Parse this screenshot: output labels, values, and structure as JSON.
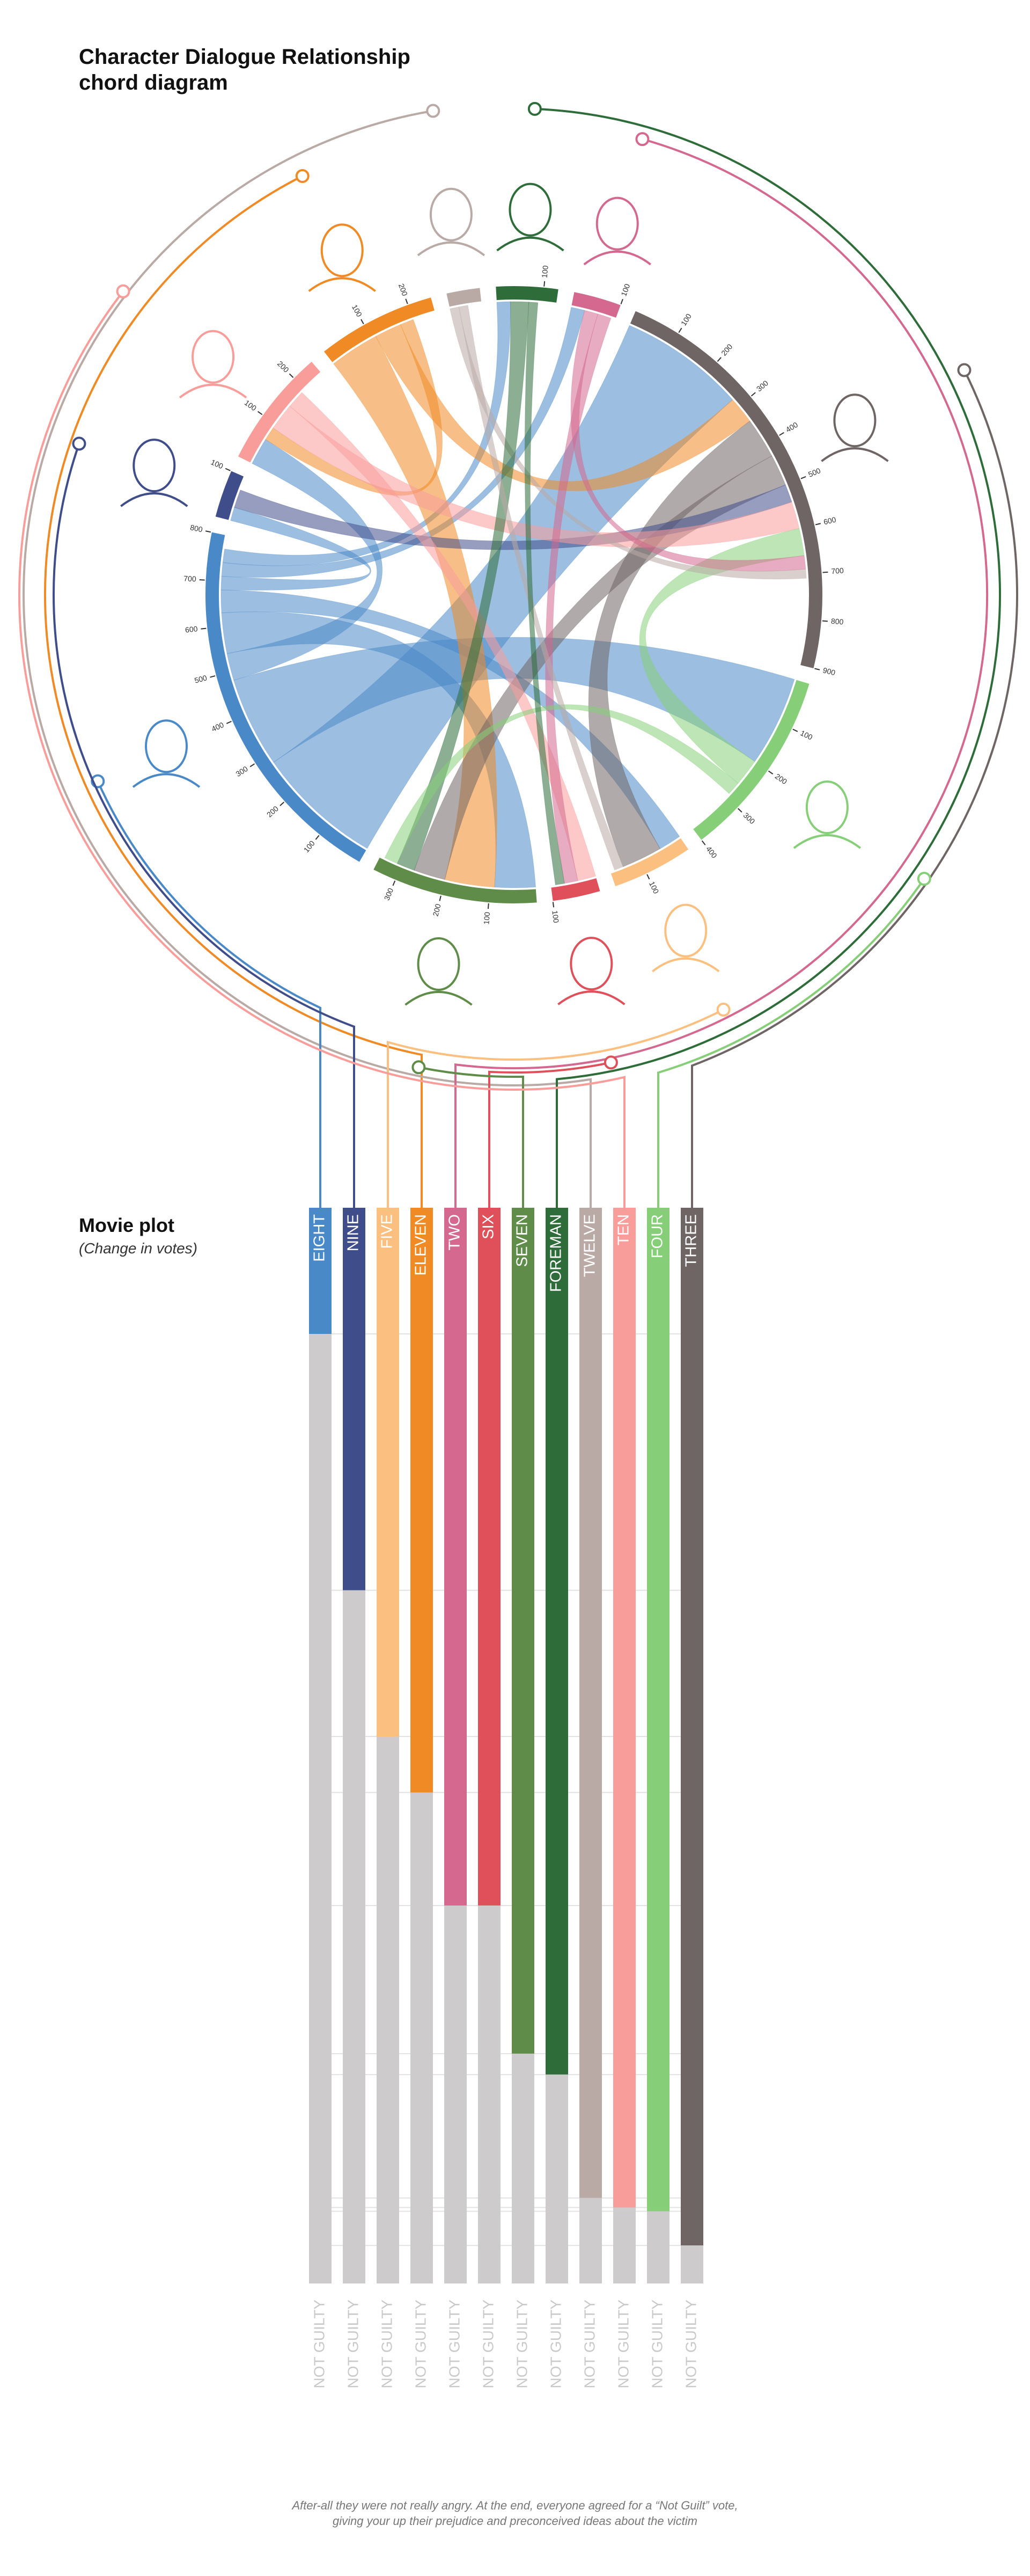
{
  "chart_data": [
    {
      "type": "chord",
      "title": "Character Dialogue Relationship chord diagram",
      "groups": [
        {
          "character": "ELEVEN",
          "value": 250
        },
        {
          "character": "TWELVE",
          "value": 70
        },
        {
          "character": "FOREMAN",
          "value": 130
        },
        {
          "character": "TWO",
          "value": 100
        },
        {
          "character": "THREE",
          "value": 900
        },
        {
          "character": "FOUR",
          "value": 400
        },
        {
          "character": "FIVE",
          "value": 170
        },
        {
          "character": "SIX",
          "value": 100
        },
        {
          "character": "SEVEN",
          "value": 350
        },
        {
          "character": "EIGHT",
          "value": 800
        },
        {
          "character": "NINE",
          "value": 100
        },
        {
          "character": "TEN",
          "value": 250
        }
      ],
      "ticks": [
        100,
        200,
        300,
        400,
        500,
        600,
        700,
        800,
        900
      ],
      "chords": [
        {
          "from": "EIGHT",
          "to": "THREE",
          "value": 280
        },
        {
          "from": "EIGHT",
          "to": "FOUR",
          "value": 200
        },
        {
          "from": "EIGHT",
          "to": "TEN",
          "value": 60
        },
        {
          "from": "EIGHT",
          "to": "SEVEN",
          "value": 90
        },
        {
          "from": "EIGHT",
          "to": "FIVE",
          "value": 50
        },
        {
          "from": "EIGHT",
          "to": "NINE",
          "value": 30
        },
        {
          "from": "EIGHT",
          "to": "TWO",
          "value": 30
        },
        {
          "from": "EIGHT",
          "to": "FOREMAN",
          "value": 30
        },
        {
          "from": "ELEVEN",
          "to": "SEVEN",
          "value": 110
        },
        {
          "from": "ELEVEN",
          "to": "THREE",
          "value": 60
        },
        {
          "from": "ELEVEN",
          "to": "TEN",
          "value": 30
        },
        {
          "from": "THREE",
          "to": "FIVE",
          "value": 90
        },
        {
          "from": "THREE",
          "to": "SEVEN",
          "value": 70
        },
        {
          "from": "NINE",
          "to": "THREE",
          "value": 40
        },
        {
          "from": "TEN",
          "to": "THREE",
          "value": 60
        },
        {
          "from": "FOUR",
          "to": "THREE",
          "value": 60
        },
        {
          "from": "TWO",
          "to": "THREE",
          "value": 30
        },
        {
          "from": "TWELVE",
          "to": "THREE",
          "value": 20
        },
        {
          "from": "TEN",
          "to": "SIX",
          "value": 40
        },
        {
          "from": "TWO",
          "to": "SIX",
          "value": 30
        },
        {
          "from": "FOREMAN",
          "to": "SEVEN",
          "value": 40
        },
        {
          "from": "FOUR",
          "to": "SEVEN",
          "value": 30
        },
        {
          "from": "TWELVE",
          "to": "FIVE",
          "value": 20
        },
        {
          "from": "FOREMAN",
          "to": "SIX",
          "value": 20
        }
      ]
    },
    {
      "type": "timeline",
      "title": "Movie plot",
      "subtitle": "(Change in votes)",
      "categories": [
        "EIGHT",
        "NINE",
        "FIVE",
        "ELEVEN",
        "TWO",
        "SIX",
        "SEVEN",
        "FOREMAN",
        "TWELVE",
        "TEN",
        "FOUR",
        "THREE"
      ],
      "colors": [
        "#4a89c8",
        "#3f4d8a",
        "#fbbf7f",
        "#f08a24",
        "#d4688e",
        "#e0505a",
        "#5f8c48",
        "#2e6d3a",
        "#b9aaa6",
        "#f99d9b",
        "#86cf78",
        "#6f6565"
      ],
      "values": [
        0,
        27,
        42.4,
        48.3,
        60.2,
        60.2,
        75.8,
        78,
        91,
        92,
        92.4,
        96
      ],
      "ylim": [
        0,
        100
      ],
      "end_label": "NOT GUILTY",
      "footnote": [
        "After-all they were not really angry. At the end, everyone agreed for a “Not Guilt” vote,",
        "giving your up their prejudice and preconceived ideas about the victim"
      ]
    }
  ]
}
